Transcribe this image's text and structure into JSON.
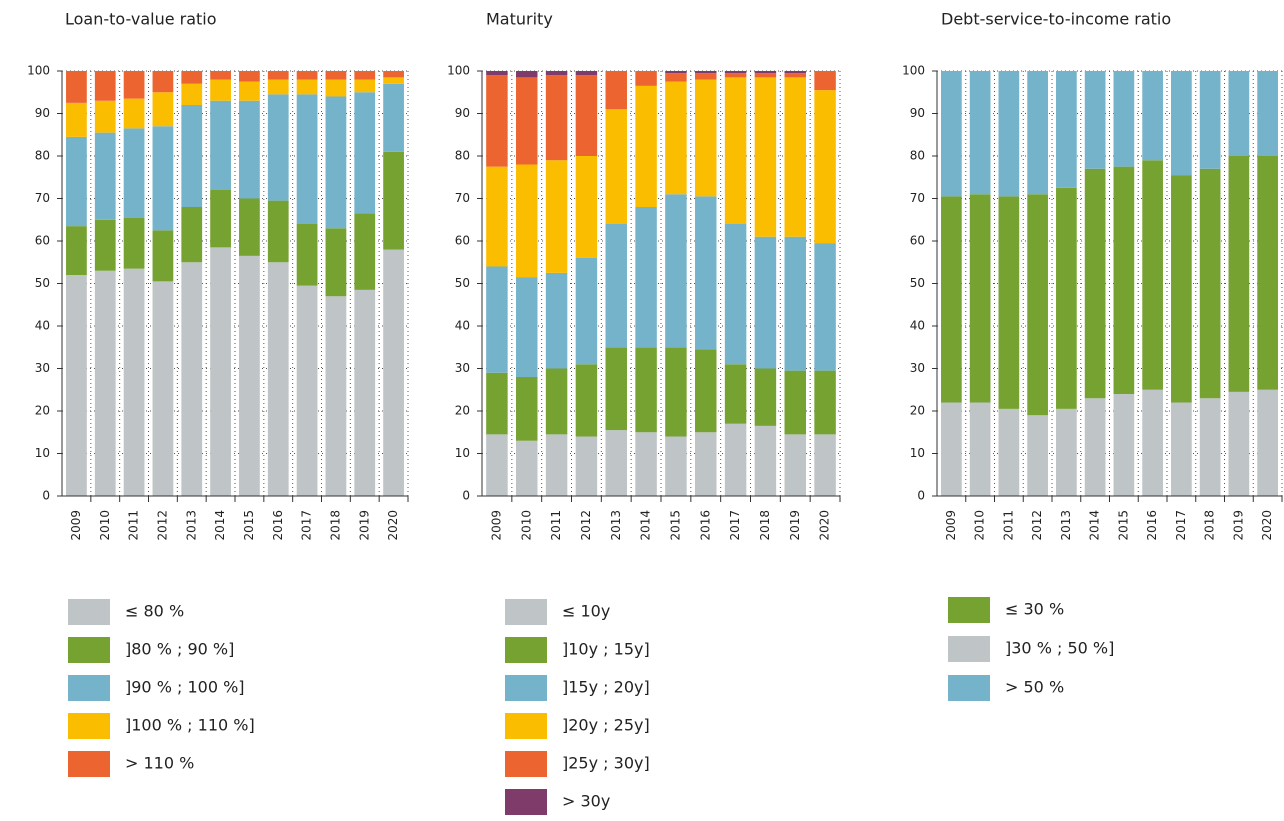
{
  "chart_data": [
    {
      "type": "stacked-bar",
      "title": "Loan-to-value ratio",
      "categories": [
        "2009",
        "2010",
        "2011",
        "2012",
        "2013",
        "2014",
        "2015",
        "2016",
        "2017",
        "2018",
        "2019",
        "2020"
      ],
      "ylim": [
        0,
        100
      ],
      "yticks": [
        0,
        10,
        20,
        30,
        40,
        50,
        60,
        70,
        80,
        90,
        100
      ],
      "grid": true,
      "series": [
        {
          "name": "≤ 80 %",
          "color": "#bfc4c6",
          "values": [
            52,
            53,
            53.5,
            50.5,
            55,
            58.5,
            56.5,
            55,
            49.5,
            47,
            48.5,
            58
          ]
        },
        {
          "name": "]80 % ; 90 %]",
          "color": "#76a232",
          "values": [
            11.5,
            12,
            12,
            12,
            13,
            13.5,
            13.5,
            14.5,
            14.5,
            16,
            18,
            23
          ]
        },
        {
          "name": "]90 % ; 100 %]",
          "color": "#74b3c9",
          "values": [
            21,
            20.5,
            21,
            24.5,
            24,
            21,
            23,
            25,
            30.5,
            31,
            28.5,
            16
          ]
        },
        {
          "name": "]100 % ; 110 %]",
          "color": "#fbbd00",
          "values": [
            8,
            7.5,
            7,
            8,
            5,
            5,
            4.5,
            3.5,
            3.5,
            4,
            3,
            1.5
          ]
        },
        {
          "name": "> 110 %",
          "color": "#ec6530",
          "values": [
            7.5,
            7,
            6.5,
            5,
            3,
            2,
            2.5,
            2,
            2,
            2,
            2,
            1.5
          ]
        }
      ]
    },
    {
      "type": "stacked-bar",
      "title": "Maturity",
      "categories": [
        "2009",
        "2010",
        "2011",
        "2012",
        "2013",
        "2014",
        "2015",
        "2016",
        "2017",
        "2018",
        "2019",
        "2020"
      ],
      "ylim": [
        0,
        100
      ],
      "yticks": [
        0,
        10,
        20,
        30,
        40,
        50,
        60,
        70,
        80,
        90,
        100
      ],
      "grid": true,
      "series": [
        {
          "name": "≤ 10y",
          "color": "#bfc4c6",
          "values": [
            14.5,
            13,
            14.5,
            14,
            15.5,
            15,
            14,
            15,
            17,
            16.5,
            14.5,
            14.5
          ]
        },
        {
          "name": "]10y ; 15y]",
          "color": "#76a232",
          "values": [
            14.5,
            15,
            15.5,
            17,
            19.5,
            20,
            21,
            19.5,
            14,
            13.5,
            15,
            15
          ]
        },
        {
          "name": "]15y ; 20y]",
          "color": "#74b3c9",
          "values": [
            25,
            23.5,
            22.5,
            25,
            29,
            33,
            36,
            36,
            33,
            31,
            31.5,
            30
          ]
        },
        {
          "name": "]20y ; 25y]",
          "color": "#fbbd00",
          "values": [
            23.5,
            26.5,
            26.5,
            24,
            27,
            28.5,
            26.5,
            27.5,
            34.5,
            37.5,
            37.5,
            36
          ]
        },
        {
          "name": "]25y ; 30y]",
          "color": "#ec6530",
          "values": [
            21.5,
            20.5,
            20,
            19,
            9,
            3.5,
            2,
            1.5,
            1,
            1,
            1,
            4.5
          ]
        },
        {
          "name": "> 30y",
          "color": "#7f3c6a",
          "values": [
            1,
            1.5,
            1,
            1,
            0,
            0,
            0.5,
            0.5,
            0.5,
            0.5,
            0.5,
            0
          ]
        }
      ]
    },
    {
      "type": "stacked-bar",
      "title": "Debt-service-to-income ratio",
      "categories": [
        "2009",
        "2010",
        "2011",
        "2012",
        "2013",
        "2014",
        "2015",
        "2016",
        "2017",
        "2018",
        "2019",
        "2020"
      ],
      "ylim": [
        0,
        100
      ],
      "yticks": [
        0,
        10,
        20,
        30,
        40,
        50,
        60,
        70,
        80,
        90,
        100
      ],
      "grid": true,
      "stack_order": [
        1,
        0,
        2
      ],
      "series": [
        {
          "name": "≤ 30 %",
          "color": "#76a232",
          "values": [
            48.5,
            49,
            50,
            52,
            52,
            54,
            53.5,
            54,
            53.5,
            54,
            55.5,
            55
          ]
        },
        {
          "name": "]30 % ; 50 %]",
          "color": "#bfc4c6",
          "values": [
            22,
            22,
            20.5,
            19,
            20.5,
            23,
            24,
            25,
            22,
            23,
            24.5,
            25
          ]
        },
        {
          "name": "> 50 %",
          "color": "#74b3c9",
          "values": [
            29.5,
            29,
            29.5,
            29,
            27.5,
            23,
            22.5,
            21,
            24.5,
            23,
            20,
            20
          ]
        }
      ]
    }
  ]
}
